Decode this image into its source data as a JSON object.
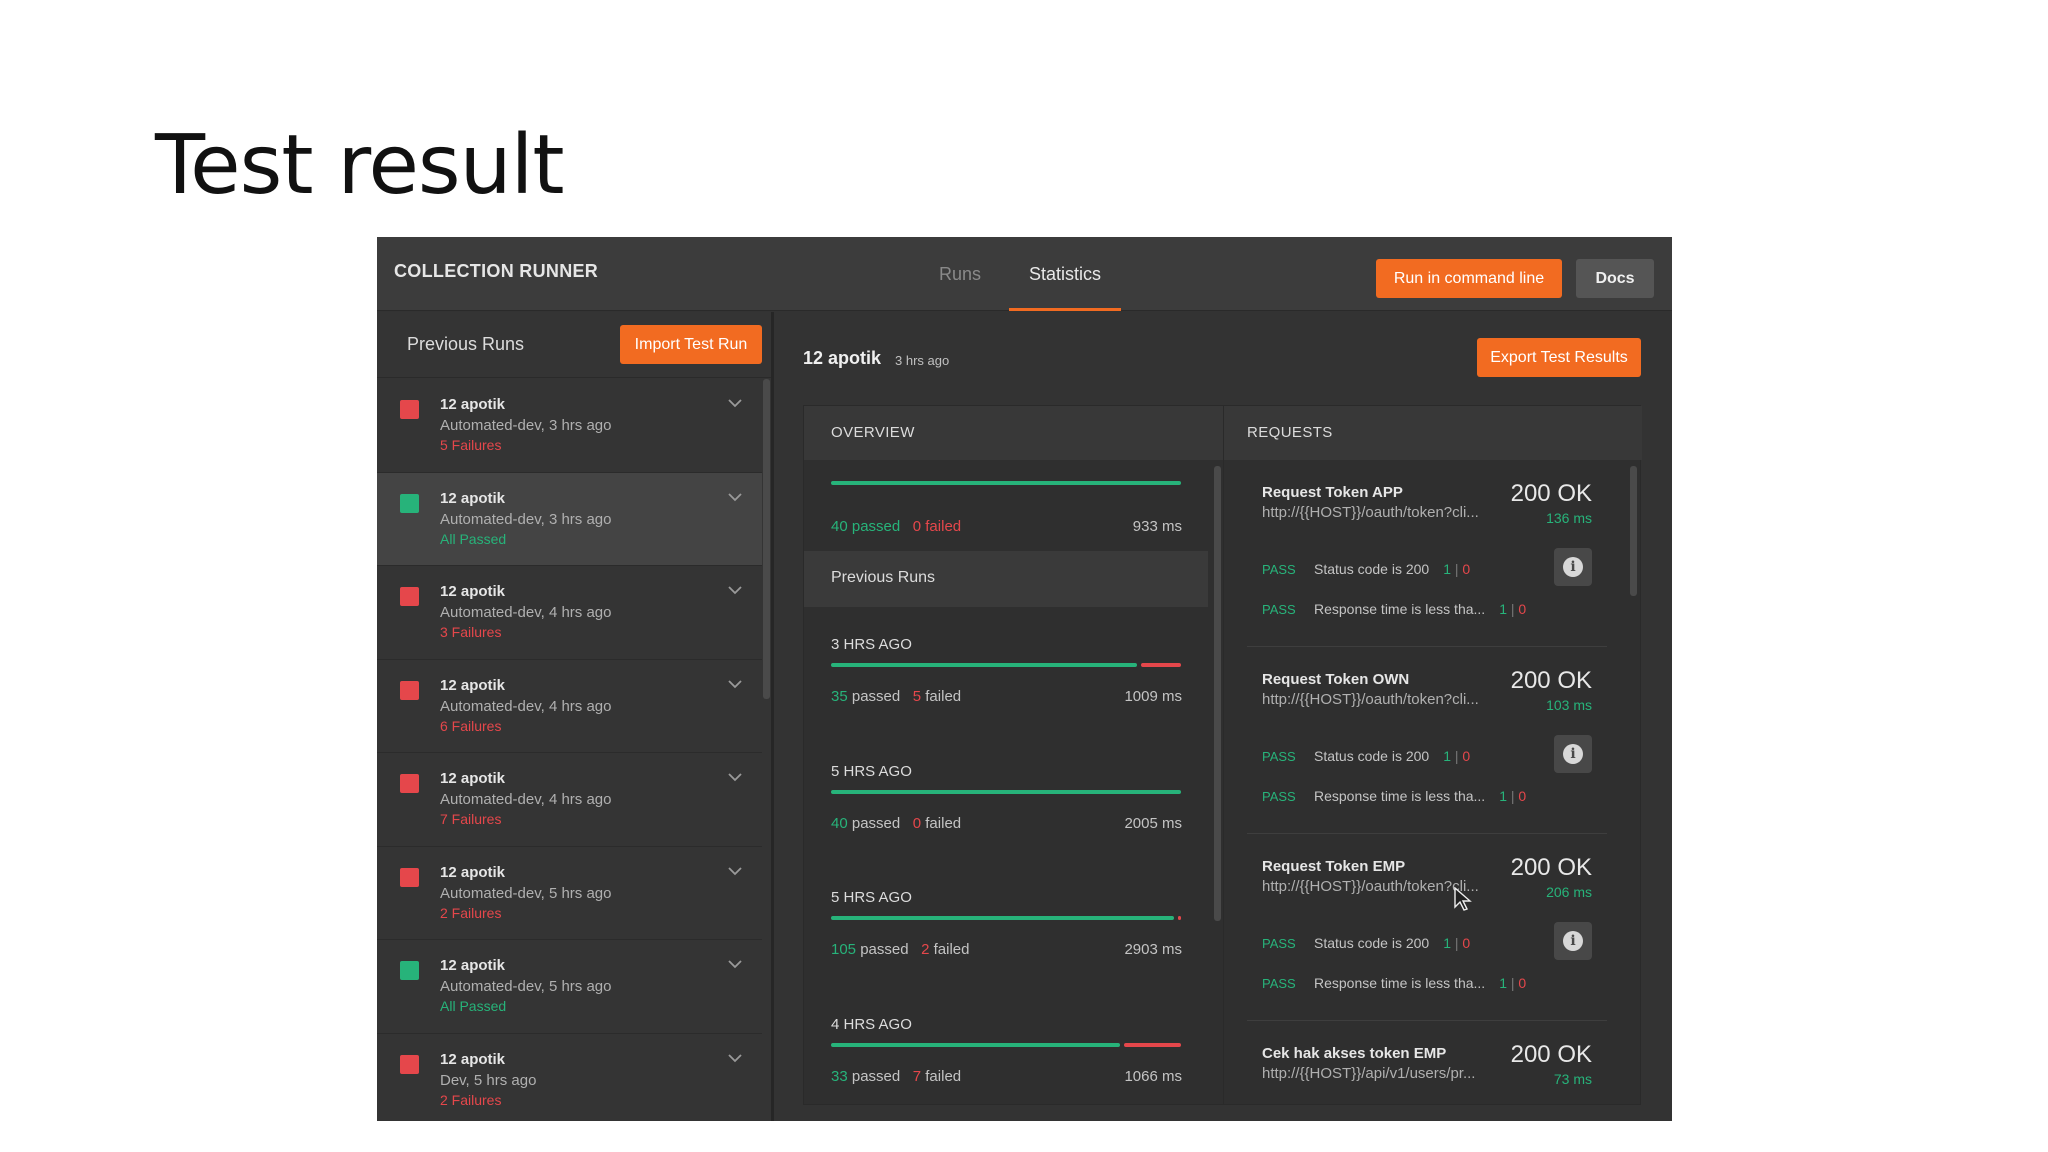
{
  "slide": {
    "title": "Test result"
  },
  "topbar": {
    "title": "COLLECTION RUNNER",
    "tabs": [
      {
        "label": "Runs"
      },
      {
        "label": "Statistics",
        "active": true
      }
    ],
    "run_cmd_label": "Run in command line",
    "docs_label": "Docs"
  },
  "sidebar": {
    "title": "Previous Runs",
    "import_label": "Import Test Run",
    "runs": [
      {
        "name": "12 apotik",
        "sub": "Automated-dev, 3 hrs ago",
        "status": "5 Failures",
        "state": "fail"
      },
      {
        "name": "12 apotik",
        "sub": "Automated-dev, 3 hrs ago",
        "status": "All Passed",
        "state": "pass"
      },
      {
        "name": "12 apotik",
        "sub": "Automated-dev, 4 hrs ago",
        "status": "3 Failures",
        "state": "fail"
      },
      {
        "name": "12 apotik",
        "sub": "Automated-dev, 4 hrs ago",
        "status": "6 Failures",
        "state": "fail"
      },
      {
        "name": "12 apotik",
        "sub": "Automated-dev, 4 hrs ago",
        "status": "7 Failures",
        "state": "fail"
      },
      {
        "name": "12 apotik",
        "sub": "Automated-dev, 5 hrs ago",
        "status": "2 Failures",
        "state": "fail"
      },
      {
        "name": "12 apotik",
        "sub": "Automated-dev, 5 hrs ago",
        "status": "All Passed",
        "state": "pass"
      },
      {
        "name": "12 apotik",
        "sub": "Dev, 5 hrs ago",
        "status": "2 Failures",
        "state": "fail"
      }
    ]
  },
  "main": {
    "run_name": "12 apotik",
    "run_time": "3 hrs ago",
    "export_label": "Export Test Results",
    "overview": {
      "header": "OVERVIEW",
      "current": {
        "passed_num": "40",
        "passed_word": "passed",
        "failed_num": "0",
        "failed_word": "failed",
        "ms": "933 ms",
        "pass_fraction": 1.0
      },
      "prev_title": "Previous Runs",
      "prev": [
        {
          "ago": "3 HRS AGO",
          "passed_num": "35",
          "passed_word": "passed",
          "failed_num": "5",
          "failed_word": "failed",
          "ms": "1009 ms",
          "pass_fraction": 0.875
        },
        {
          "ago": "5 HRS AGO",
          "passed_num": "40",
          "passed_word": "passed",
          "failed_num": "0",
          "failed_word": "failed",
          "ms": "2005 ms",
          "pass_fraction": 1.0
        },
        {
          "ago": "5 HRS AGO",
          "passed_num": "105",
          "passed_word": "passed",
          "failed_num": "2",
          "failed_word": "failed",
          "ms": "2903 ms",
          "pass_fraction": 0.981
        },
        {
          "ago": "4 HRS AGO",
          "passed_num": "33",
          "passed_word": "passed",
          "failed_num": "7",
          "failed_word": "failed",
          "ms": "1066 ms",
          "pass_fraction": 0.825
        }
      ]
    },
    "requests": {
      "header": "REQUESTS",
      "items": [
        {
          "name": "Request Token APP",
          "url": "http://{{HOST}}/oauth/token?cli...",
          "code": "200 OK",
          "time": "136 ms",
          "tests": [
            {
              "label": "PASS",
              "text": "Status code is 200",
              "pass": "1",
              "fail": "0"
            },
            {
              "label": "PASS",
              "text": "Response time is less tha...",
              "pass": "1",
              "fail": "0"
            }
          ]
        },
        {
          "name": "Request Token OWN",
          "url": "http://{{HOST}}/oauth/token?cli...",
          "code": "200 OK",
          "time": "103 ms",
          "tests": [
            {
              "label": "PASS",
              "text": "Status code is 200",
              "pass": "1",
              "fail": "0"
            },
            {
              "label": "PASS",
              "text": "Response time is less tha...",
              "pass": "1",
              "fail": "0"
            }
          ]
        },
        {
          "name": "Request Token EMP",
          "url": "http://{{HOST}}/oauth/token?cli...",
          "code": "200 OK",
          "time": "206 ms",
          "tests": [
            {
              "label": "PASS",
              "text": "Status code is 200",
              "pass": "1",
              "fail": "0"
            },
            {
              "label": "PASS",
              "text": "Response time is less tha...",
              "pass": "1",
              "fail": "0"
            }
          ]
        },
        {
          "name": "Cek hak akses token EMP",
          "url": "http://{{HOST}}/api/v1/users/pr...",
          "code": "200 OK",
          "time": "73 ms",
          "tests": []
        }
      ]
    }
  },
  "colors": {
    "accent": "#f26b21",
    "pass": "#27b37a",
    "fail": "#e5474b",
    "panel": "#333333"
  }
}
